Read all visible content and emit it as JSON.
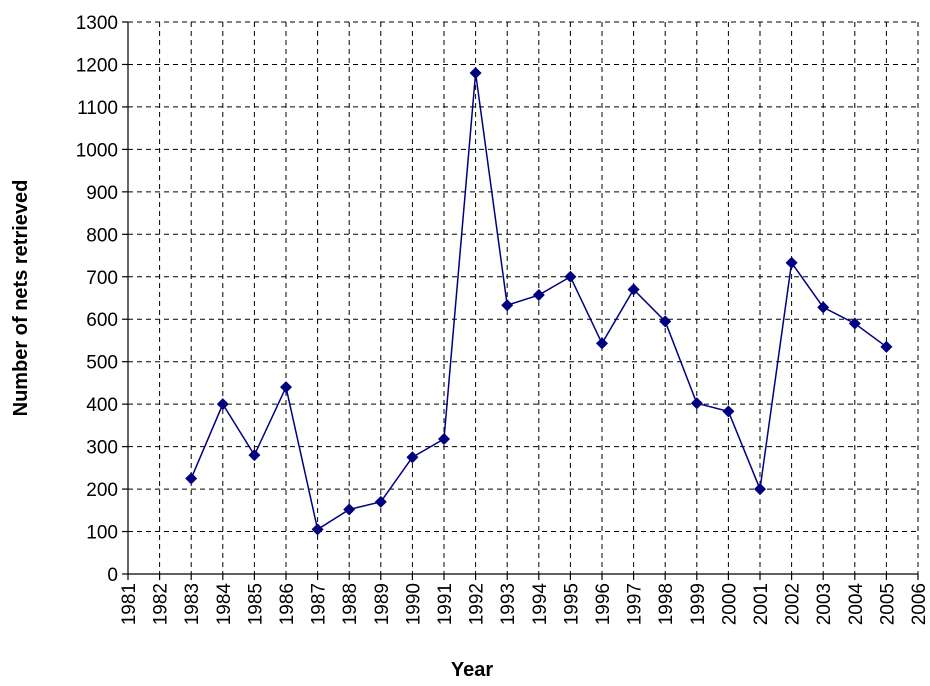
{
  "chart_data": {
    "type": "line",
    "x_label": "Year",
    "y_label": "Number of nets retrieved",
    "x": [
      1983,
      1984,
      1985,
      1986,
      1987,
      1988,
      1989,
      1990,
      1991,
      1992,
      1993,
      1994,
      1995,
      1996,
      1997,
      1998,
      1999,
      2000,
      2001,
      2002,
      2003,
      2004,
      2005
    ],
    "values": [
      225,
      400,
      280,
      440,
      105,
      152,
      170,
      275,
      318,
      1180,
      633,
      657,
      700,
      543,
      670,
      595,
      402,
      383,
      200,
      733,
      628,
      590,
      535
    ],
    "color": "#000080",
    "xlim": [
      1981,
      2006
    ],
    "xticks": [
      1981,
      1982,
      1983,
      1984,
      1985,
      1986,
      1987,
      1988,
      1989,
      1990,
      1991,
      1992,
      1993,
      1994,
      1995,
      1996,
      1997,
      1998,
      1999,
      2000,
      2001,
      2002,
      2003,
      2004,
      2005,
      2006
    ],
    "ylim": [
      0,
      1300
    ],
    "yticks": [
      0,
      100,
      200,
      300,
      400,
      500,
      600,
      700,
      800,
      900,
      1000,
      1100,
      1200,
      1300
    ],
    "grid": true
  }
}
